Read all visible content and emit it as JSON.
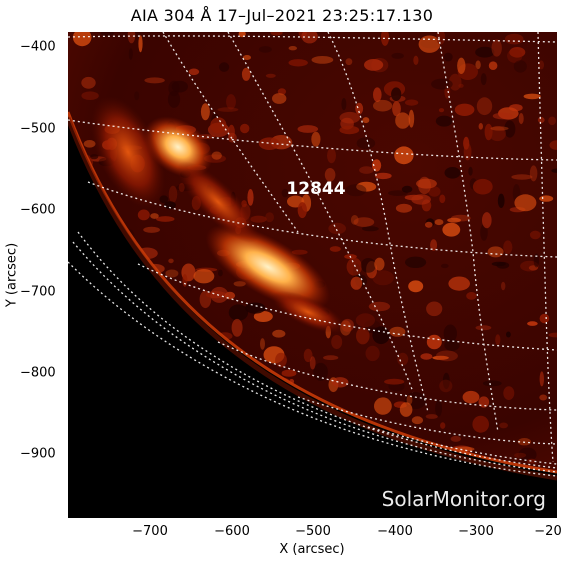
{
  "title": "AIA 304 Å 17–Jul–2021 23:25:17.130",
  "xlabel": "X (arcsec)",
  "ylabel": "Y (arcsec)",
  "xticks": [
    "−700",
    "−600",
    "−500",
    "−400",
    "−300",
    "−20"
  ],
  "yticks": [
    "−400",
    "−500",
    "−600",
    "−700",
    "−800",
    "−900"
  ],
  "region_label": "12844",
  "watermark": "SolarMonitor.org",
  "colors": {
    "disk": "#3a0400",
    "bright": "#ffd27a",
    "space": "#000000"
  }
}
